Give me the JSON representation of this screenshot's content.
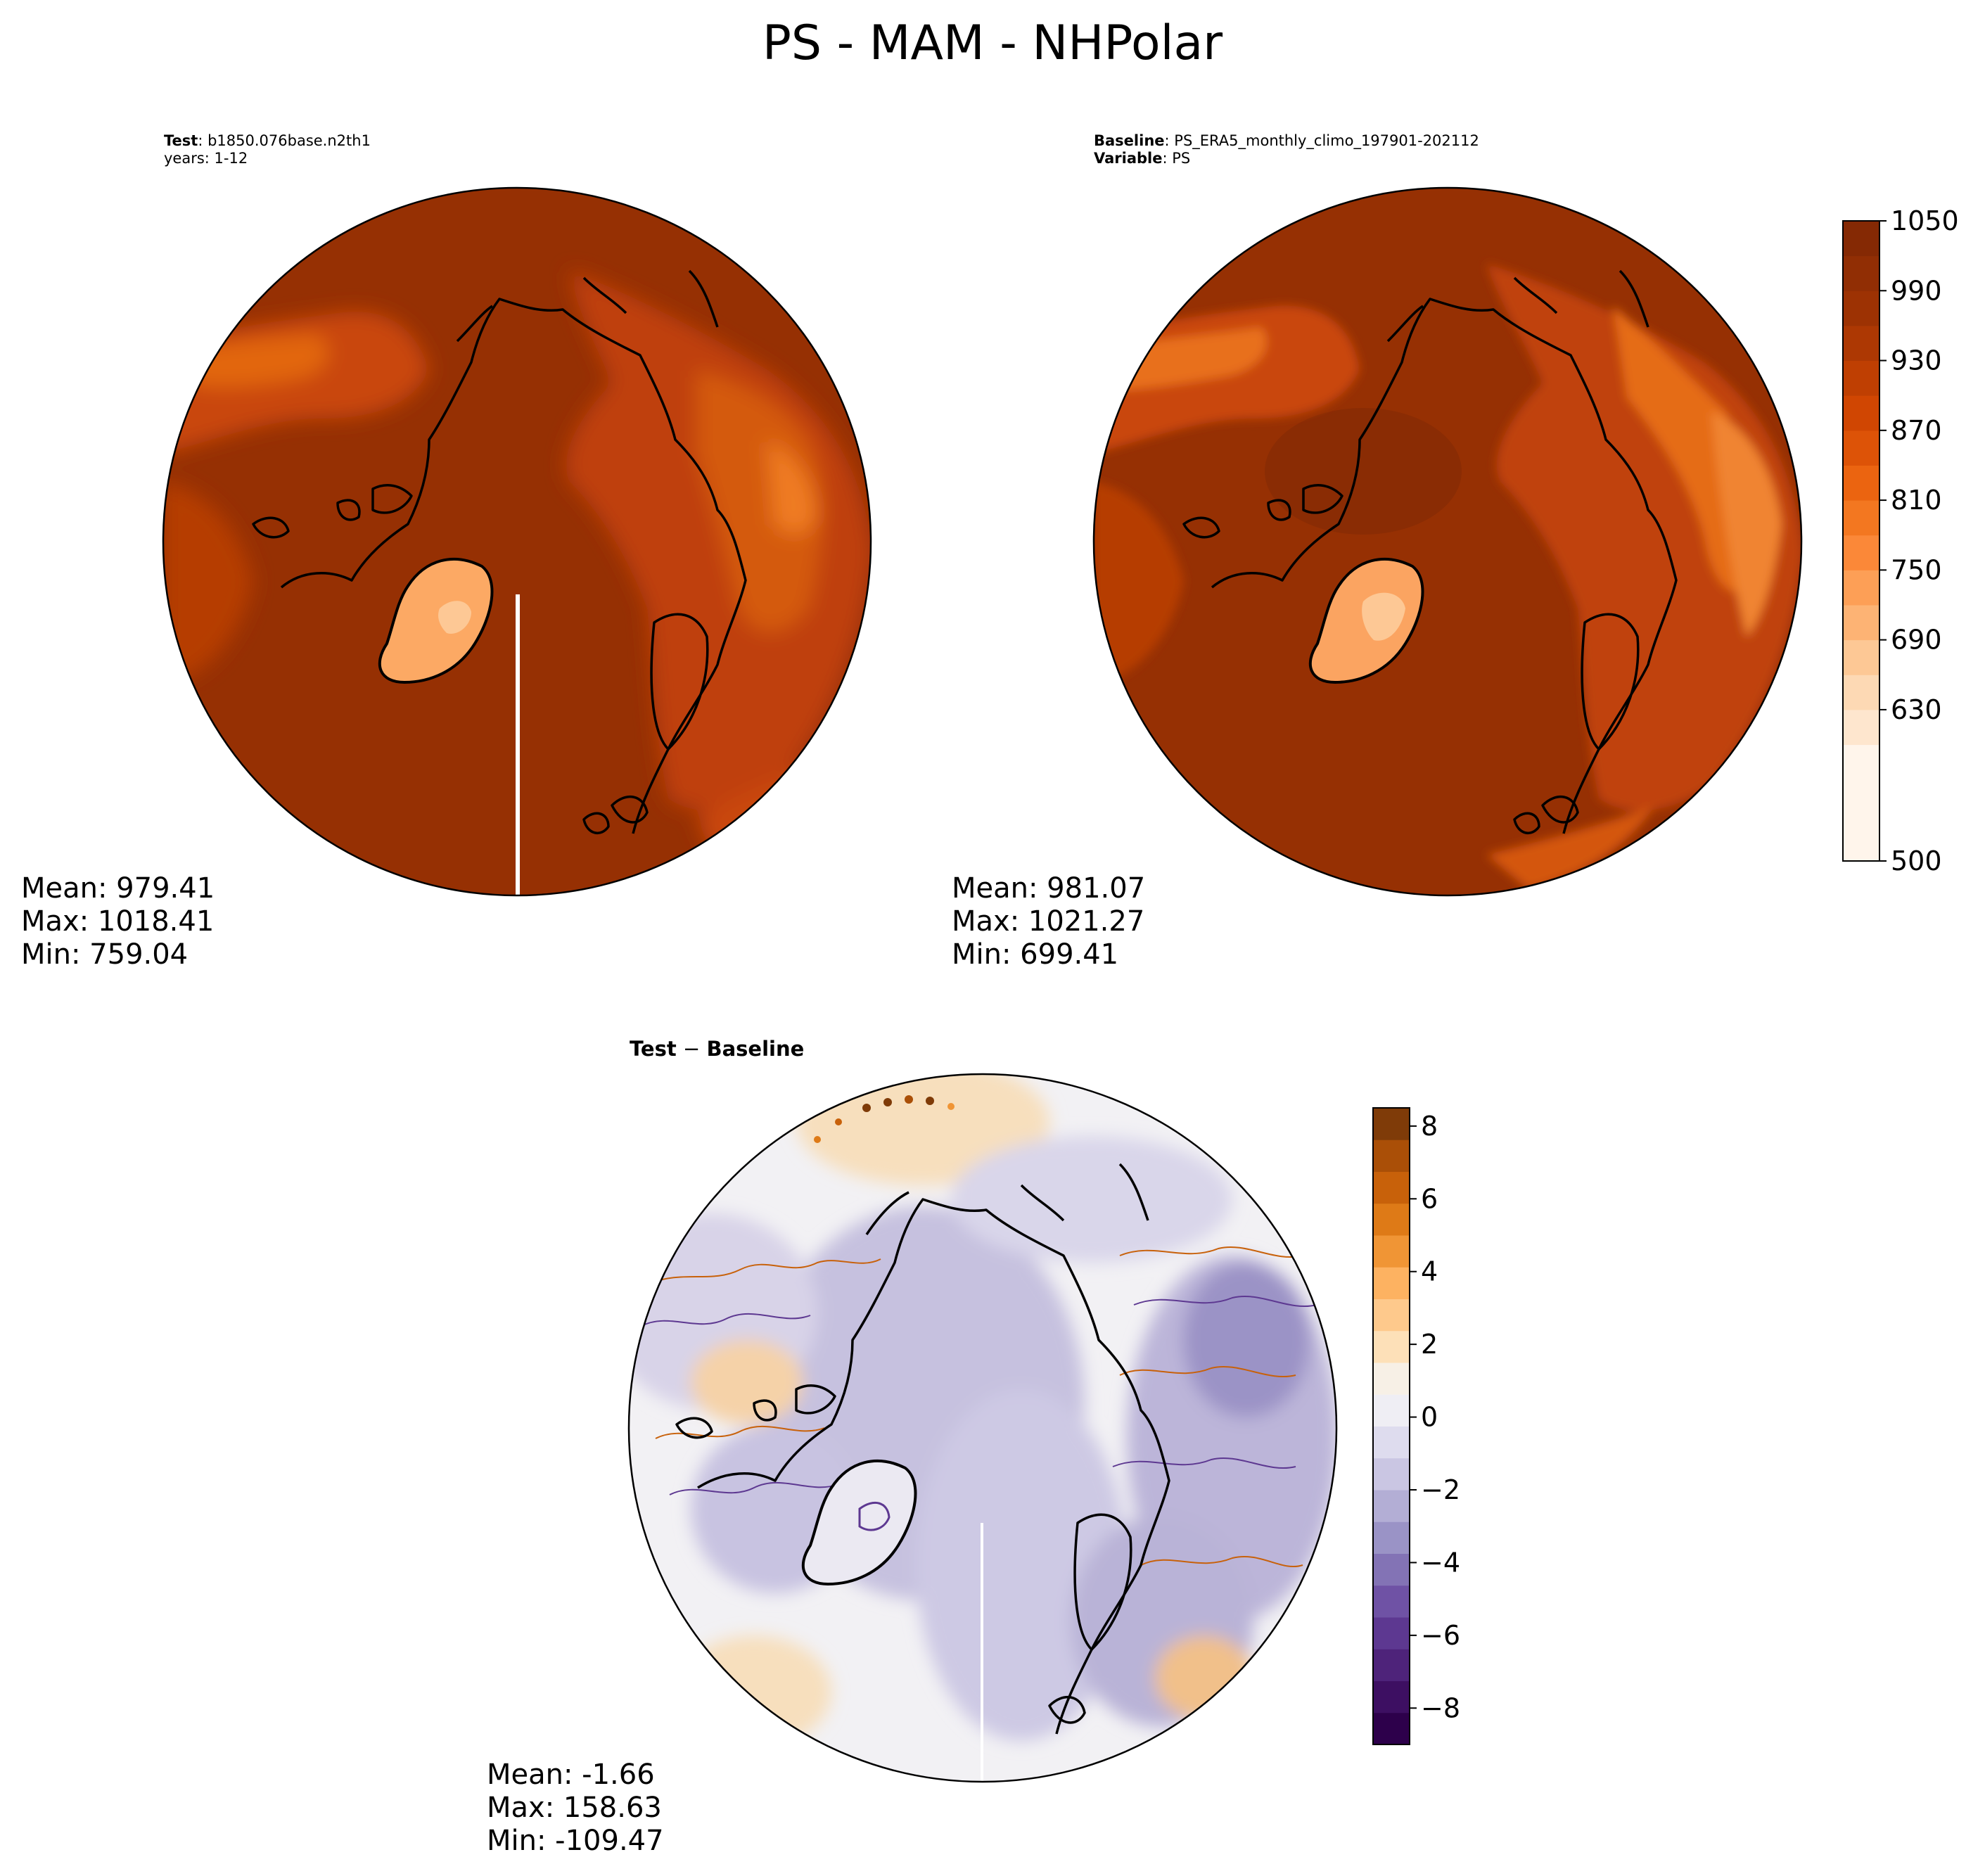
{
  "title": "PS - MAM - NHPolar",
  "test_panel": {
    "label_key": "Test",
    "label_value": "b1850.076base.n2th1",
    "years": "years: 1-12",
    "mean": "Mean: 979.41",
    "max": "Max: 1018.41",
    "min": "Min: 759.04"
  },
  "baseline_panel": {
    "label_key": "Baseline",
    "label_value": "PS_ERA5_monthly_climo_197901-202112",
    "variable_key": "Variable",
    "variable_value": "PS",
    "mean": "Mean: 981.07",
    "max": "Max: 1021.27",
    "min": "Min: 699.41"
  },
  "diff_panel": {
    "title_left": "Test",
    "title_op": " − ",
    "title_right": "Baseline",
    "mean": "Mean: -1.66",
    "max": "Max: 158.63",
    "min": "Min: -109.47"
  },
  "colors": {
    "ocean_main": "#963003",
    "ocean_dark": "#8a2c04",
    "land_mid": "#c9470b",
    "land_light": "#e6670f",
    "greenland": "#fca964",
    "coast": "#000000",
    "diff_zero": "#f2f1f4",
    "diff_neg": "#bdb7da",
    "diff_pos": "#f6d9b0"
  },
  "chart_data": [
    {
      "type": "heatmap",
      "name": "Test",
      "projection": "North Polar Stereographic",
      "units": "hPa",
      "stats": {
        "mean": 979.41,
        "max": 1018.41,
        "min": 759.04
      }
    },
    {
      "type": "heatmap",
      "name": "Baseline",
      "projection": "North Polar Stereographic",
      "units": "hPa",
      "stats": {
        "mean": 981.07,
        "max": 1021.27,
        "min": 699.41
      }
    },
    {
      "type": "heatmap",
      "name": "Test - Baseline",
      "projection": "North Polar Stereographic",
      "stats": {
        "mean": -1.66,
        "max": 158.63,
        "min": -109.47
      }
    }
  ],
  "colorbar_main": {
    "range": [
      500,
      1050
    ],
    "ticks": [
      500,
      630,
      690,
      750,
      810,
      870,
      930,
      990,
      1050
    ],
    "tick_labels": [
      "500",
      "630",
      "690",
      "750",
      "810",
      "870",
      "930",
      "990",
      "1050"
    ],
    "levels": [
      500,
      600,
      630,
      660,
      690,
      720,
      750,
      780,
      810,
      840,
      870,
      900,
      930,
      960,
      990,
      1020,
      1050
    ],
    "colors": [
      "#fff5eb",
      "#fee6ce",
      "#fdd9b4",
      "#fdc895",
      "#fdb374",
      "#fd9f56",
      "#fb8838",
      "#f37720",
      "#eb6410",
      "#dd5307",
      "#d04602",
      "#bf3f02",
      "#ad3803",
      "#9d3203",
      "#912e04",
      "#852904"
    ]
  },
  "colorbar_diff": {
    "range": [
      -9,
      8.5
    ],
    "ticks": [
      -8,
      -6,
      -4,
      -2,
      0,
      2,
      4,
      6,
      8
    ],
    "tick_labels": [
      "−8",
      "−6",
      "−4",
      "−2",
      "0",
      "2",
      "4",
      "6",
      "8"
    ],
    "colors": [
      "#2d004b",
      "#3d0f62",
      "#4e237a",
      "#5d3891",
      "#6f52a5",
      "#8373b5",
      "#9a93c6",
      "#b3aed5",
      "#cac6e3",
      "#dedcee",
      "#efeef4",
      "#f7f0e6",
      "#fde0b8",
      "#fec98c",
      "#fdb261",
      "#f09535",
      "#de7a17",
      "#c8610a",
      "#aa4f07",
      "#7f3b08"
    ]
  }
}
